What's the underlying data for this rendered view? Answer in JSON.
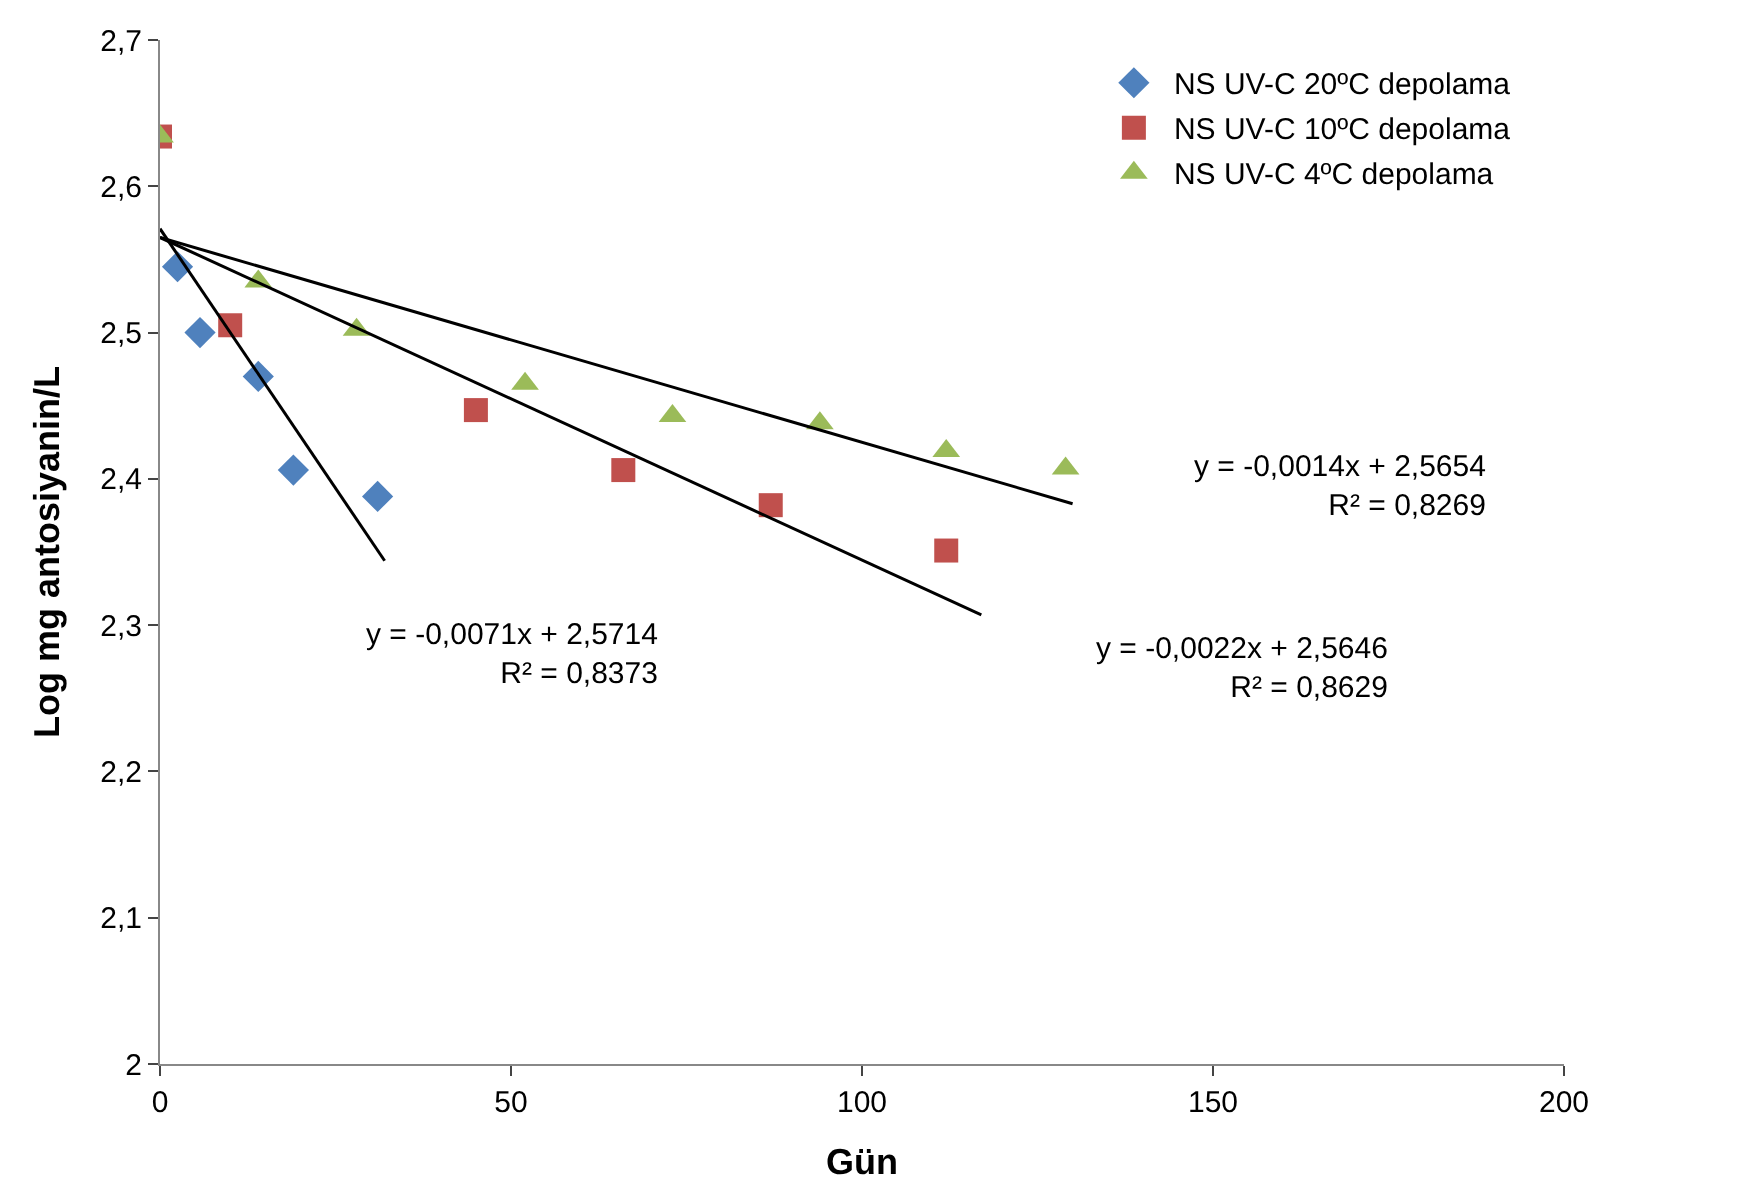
{
  "chart_data": {
    "type": "scatter",
    "xlabel": "Gün",
    "ylabel": "Log mg antosiyanin/L",
    "xlim": [
      0,
      200
    ],
    "xticks": [
      0,
      50,
      100,
      150,
      200
    ],
    "ylim": [
      2,
      2.7
    ],
    "yticks": [
      {
        "value": 2,
        "label": "2"
      },
      {
        "value": 2.1,
        "label": "2,1"
      },
      {
        "value": 2.2,
        "label": "2,2"
      },
      {
        "value": 2.3,
        "label": "2,3"
      },
      {
        "value": 2.4,
        "label": "2,4"
      },
      {
        "value": 2.5,
        "label": "2,5"
      },
      {
        "value": 2.6,
        "label": "2,6"
      },
      {
        "value": 2.7,
        "label": "2,7"
      }
    ],
    "legend": "top right",
    "series": [
      {
        "name": "NS UV-C 20ºC depolama",
        "color": "#4f81bd",
        "marker": "diamond",
        "x": [
          2.5,
          5.7,
          14,
          19,
          31
        ],
        "values": [
          2.545,
          2.5,
          2.47,
          2.406,
          2.388
        ]
      },
      {
        "name": "NS UV-C 10ºC depolama",
        "color": "#c0504d",
        "marker": "square",
        "x": [
          0,
          10,
          45,
          66,
          87,
          112
        ],
        "values": [
          2.634,
          2.505,
          2.447,
          2.406,
          2.382,
          2.351
        ]
      },
      {
        "name": "NS UV-C 4ºC depolama",
        "color": "#9bbb59",
        "marker": "triangle",
        "x": [
          0,
          14,
          28,
          52,
          73,
          94,
          112,
          129
        ],
        "values": [
          2.634,
          2.535,
          2.502,
          2.465,
          2.443,
          2.438,
          2.419,
          2.407
        ]
      },
      {
        "type": "line",
        "color": "#000000",
        "marker": "none",
        "x": [
          0,
          32
        ],
        "values": [
          2.571,
          2.344
        ]
      },
      {
        "type": "line",
        "color": "#000000",
        "marker": "none",
        "x": [
          0,
          117
        ],
        "values": [
          2.565,
          2.307
        ]
      },
      {
        "type": "line",
        "color": "#000000",
        "marker": "none",
        "x": [
          0,
          130
        ],
        "values": [
          2.565,
          2.383
        ]
      }
    ],
    "annotations": [
      "y = -0,0071x + 2,5714\nR² = 0,8373",
      "y = -0,0022x + 2,5646\nR² = 0,8629",
      "y = -0,0014x + 2,5654\nR² = 0,8269"
    ]
  }
}
